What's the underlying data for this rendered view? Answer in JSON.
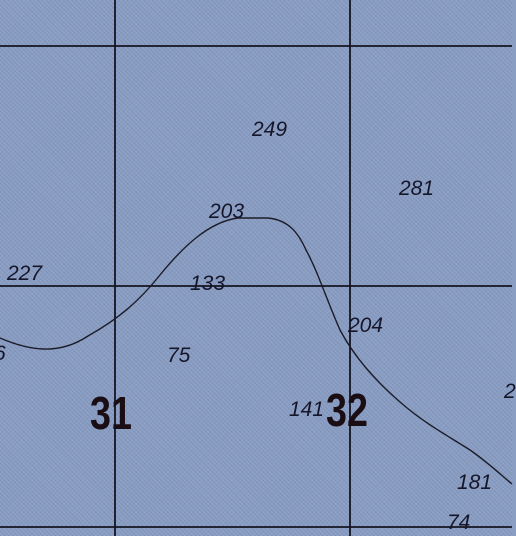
{
  "map": {
    "section_numbers": [
      "31",
      "32"
    ],
    "elevation_labels": [
      "249",
      "281",
      "203",
      "227",
      "133",
      "204",
      "75",
      "141",
      "181",
      "74",
      "6",
      "2"
    ]
  }
}
